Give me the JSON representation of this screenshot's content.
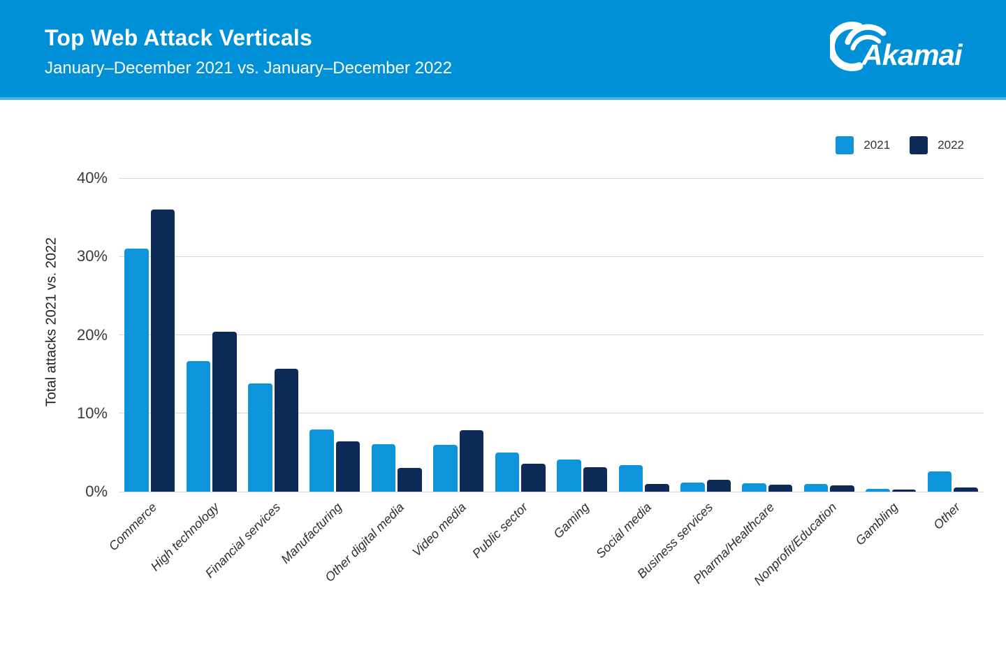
{
  "header": {
    "title": "Top Web Attack Verticals",
    "subtitle": "January–December 2021 vs. January–December 2022",
    "brand": "Akamai",
    "background_color": "#0090d8"
  },
  "chart_data": {
    "type": "bar",
    "title": "Top Web Attack Verticals",
    "subtitle": "January–December 2021 vs. January–December 2022",
    "xlabel": "",
    "ylabel": "Total attacks 2021 vs. 2022",
    "ylim": [
      0,
      40
    ],
    "ytick_labels": [
      "0%",
      "10%",
      "20%",
      "30%",
      "40%"
    ],
    "grid": "horizontal",
    "legend_position": "top-right",
    "categories": [
      "Commerce",
      "High technology",
      "Financial services",
      "Manufacturing",
      "Other digital media",
      "Video media",
      "Public sector",
      "Gaming",
      "Social media",
      "Business services",
      "Pharma/Healthcare",
      "Nonprofit/Education",
      "Gambling",
      "Other"
    ],
    "series": [
      {
        "name": "2021",
        "color": "#0d94da",
        "values": [
          31.0,
          16.7,
          13.8,
          7.9,
          6.1,
          6.0,
          5.0,
          4.1,
          3.4,
          1.2,
          1.1,
          1.0,
          0.4,
          2.6
        ]
      },
      {
        "name": "2022",
        "color": "#0e2a56",
        "values": [
          36.0,
          20.4,
          15.7,
          6.4,
          3.0,
          7.8,
          3.6,
          3.1,
          1.0,
          1.5,
          0.9,
          0.8,
          0.3,
          0.5
        ]
      }
    ]
  }
}
